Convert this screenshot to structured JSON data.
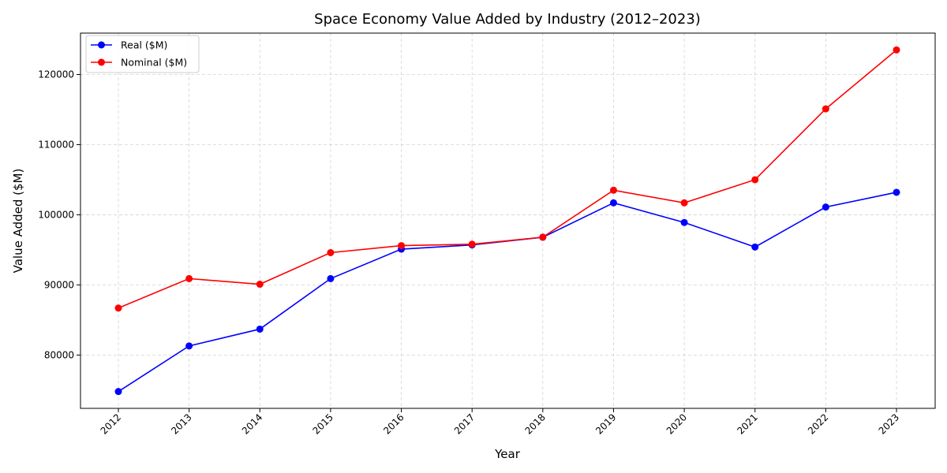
{
  "chart_data": {
    "type": "line",
    "title": "Space Economy Value Added by Industry (2012–2023)",
    "xlabel": "Year",
    "ylabel": "Value Added ($M)",
    "categories": [
      "2012",
      "2013",
      "2014",
      "2015",
      "2016",
      "2017",
      "2018",
      "2019",
      "2020",
      "2021",
      "2022",
      "2023"
    ],
    "ylim": [
      72400,
      125900
    ],
    "yticks": [
      80000,
      90000,
      100000,
      110000,
      120000
    ],
    "grid": true,
    "legend_position": "top-left",
    "series": [
      {
        "name": "Real ($M)",
        "color": "#0000ff",
        "values": [
          74800,
          81300,
          83700,
          90900,
          95100,
          95700,
          96800,
          101700,
          98900,
          95400,
          101100,
          103200
        ]
      },
      {
        "name": "Nominal ($M)",
        "color": "#ff0000",
        "values": [
          86700,
          90900,
          90100,
          94600,
          95600,
          95800,
          96800,
          103500,
          101700,
          105000,
          115100,
          123500
        ]
      }
    ]
  }
}
